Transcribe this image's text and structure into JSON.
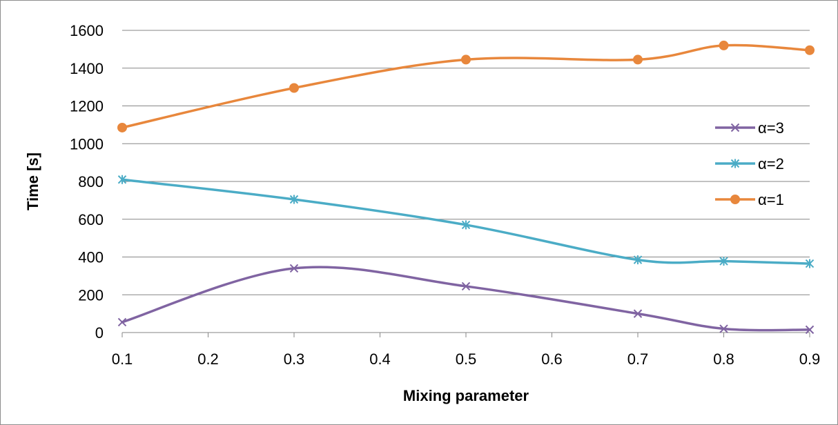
{
  "chart_data": {
    "type": "line",
    "title": "",
    "xlabel": "Mixing parameter",
    "ylabel": "Time [s]",
    "xlim": [
      0.1,
      0.9
    ],
    "ylim": [
      0,
      1600
    ],
    "x_ticks": [
      "0.1",
      "0.2",
      "0.3",
      "0.4",
      "0.5",
      "0.6",
      "0.7",
      "0.8",
      "0.9"
    ],
    "y_ticks": [
      "0",
      "200",
      "400",
      "600",
      "800",
      "1000",
      "1200",
      "1400",
      "1600"
    ],
    "grid": "horizontal",
    "smooth": true,
    "legend_position": "right",
    "x": [
      0.1,
      0.3,
      0.5,
      0.7,
      0.8,
      0.9
    ],
    "series": [
      {
        "name": "α=3",
        "color": "#8064a2",
        "marker": "x",
        "values": [
          55,
          340,
          245,
          100,
          20,
          15
        ]
      },
      {
        "name": "α=2",
        "color": "#4bacc6",
        "marker": "asterisk",
        "values": [
          810,
          705,
          570,
          385,
          378,
          365
        ]
      },
      {
        "name": "α=1",
        "color": "#e8873c",
        "marker": "circle",
        "values": [
          1085,
          1295,
          1445,
          1445,
          1520,
          1495
        ]
      }
    ]
  }
}
